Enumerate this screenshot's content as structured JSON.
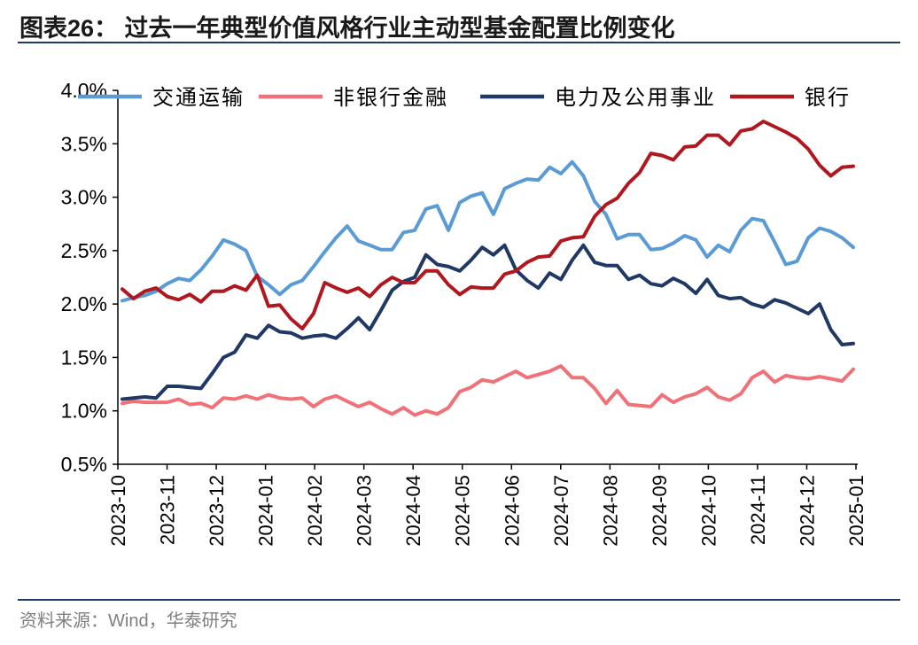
{
  "title": "图表26：  过去一年典型价值风格行业主动型基金配置比例变化",
  "source": "资料来源：Wind，华泰研究",
  "chart_data": {
    "type": "line",
    "ylim": [
      0.005,
      0.04
    ],
    "yticks": [
      "4.0%",
      "3.5%",
      "3.0%",
      "2.5%",
      "2.0%",
      "1.5%",
      "1.0%",
      "0.5%"
    ],
    "ytick_values": [
      0.04,
      0.035,
      0.03,
      0.025,
      0.02,
      0.015,
      0.01,
      0.005
    ],
    "xticks": [
      "2023-10",
      "2023-11",
      "2023-12",
      "2024-01",
      "2024-02",
      "2024-03",
      "2024-04",
      "2024-05",
      "2024-06",
      "2024-07",
      "2024-08",
      "2024-09",
      "2024-10",
      "2024-11",
      "2024-12",
      "2025-01"
    ],
    "legend_position": "top",
    "series": [
      {
        "name": "交通运输",
        "color": "#5b9bd5",
        "values": [
          0.0203,
          0.0206,
          0.0208,
          0.0212,
          0.0219,
          0.0224,
          0.0222,
          0.0232,
          0.0245,
          0.026,
          0.0256,
          0.025,
          0.0226,
          0.0218,
          0.0209,
          0.0218,
          0.0222,
          0.0235,
          0.0249,
          0.0262,
          0.0273,
          0.0259,
          0.0255,
          0.0251,
          0.0251,
          0.0267,
          0.0269,
          0.0289,
          0.0292,
          0.0269,
          0.0295,
          0.0301,
          0.0304,
          0.0284,
          0.0308,
          0.0313,
          0.0317,
          0.0316,
          0.0328,
          0.0322,
          0.0333,
          0.032,
          0.0296,
          0.0284,
          0.0261,
          0.0265,
          0.0265,
          0.0251,
          0.0252,
          0.0257,
          0.0264,
          0.026,
          0.0244,
          0.0255,
          0.0249,
          0.0269,
          0.028,
          0.0278,
          0.0258,
          0.0237,
          0.024,
          0.0262,
          0.0271,
          0.0268,
          0.0262,
          0.0253
        ]
      },
      {
        "name": "非银行金融",
        "color": "#f07178",
        "values": [
          0.0107,
          0.0109,
          0.0108,
          0.0108,
          0.0108,
          0.0111,
          0.0106,
          0.0107,
          0.0103,
          0.0112,
          0.0111,
          0.0114,
          0.0111,
          0.0115,
          0.0112,
          0.0111,
          0.0112,
          0.0104,
          0.0111,
          0.0114,
          0.0109,
          0.0104,
          0.0108,
          0.0102,
          0.0097,
          0.0103,
          0.0096,
          0.01,
          0.0097,
          0.0103,
          0.0118,
          0.0122,
          0.0129,
          0.0127,
          0.0132,
          0.0137,
          0.0131,
          0.0134,
          0.0137,
          0.0142,
          0.0131,
          0.0131,
          0.0121,
          0.0107,
          0.0119,
          0.0106,
          0.0105,
          0.0104,
          0.0115,
          0.0108,
          0.0113,
          0.0116,
          0.0122,
          0.0113,
          0.011,
          0.0116,
          0.0131,
          0.0137,
          0.0127,
          0.0133,
          0.0131,
          0.013,
          0.0132,
          0.013,
          0.0128,
          0.0139
        ]
      },
      {
        "name": "电力及公用事业",
        "color": "#1f3864",
        "values": [
          0.0111,
          0.0112,
          0.0113,
          0.0112,
          0.0123,
          0.0123,
          0.0122,
          0.0121,
          0.0135,
          0.015,
          0.0155,
          0.0171,
          0.0168,
          0.018,
          0.0174,
          0.0173,
          0.0168,
          0.017,
          0.0171,
          0.0168,
          0.0177,
          0.0187,
          0.0176,
          0.0194,
          0.0213,
          0.0221,
          0.0225,
          0.0246,
          0.0237,
          0.0235,
          0.0231,
          0.0241,
          0.0253,
          0.0246,
          0.0255,
          0.0232,
          0.0222,
          0.0215,
          0.0229,
          0.0223,
          0.0241,
          0.0255,
          0.0239,
          0.0236,
          0.0236,
          0.0223,
          0.0227,
          0.0219,
          0.0217,
          0.0224,
          0.0219,
          0.021,
          0.0223,
          0.0208,
          0.0205,
          0.0206,
          0.02,
          0.0197,
          0.0204,
          0.0201,
          0.0196,
          0.0191,
          0.02,
          0.0176,
          0.0162,
          0.0163
        ]
      },
      {
        "name": "银行",
        "color": "#b0171f",
        "values": [
          0.0214,
          0.0205,
          0.0212,
          0.0215,
          0.0207,
          0.0204,
          0.0209,
          0.0202,
          0.0212,
          0.0212,
          0.0217,
          0.0213,
          0.0227,
          0.0198,
          0.0199,
          0.0186,
          0.0177,
          0.0191,
          0.022,
          0.0215,
          0.0211,
          0.0215,
          0.0207,
          0.0218,
          0.0225,
          0.022,
          0.022,
          0.0231,
          0.0231,
          0.0218,
          0.0209,
          0.0216,
          0.0215,
          0.0215,
          0.0228,
          0.0231,
          0.0239,
          0.0244,
          0.0245,
          0.0259,
          0.0262,
          0.0263,
          0.0282,
          0.0293,
          0.0299,
          0.0313,
          0.0323,
          0.0341,
          0.0339,
          0.0335,
          0.0347,
          0.0348,
          0.0358,
          0.0358,
          0.0349,
          0.0362,
          0.0364,
          0.0371,
          0.0366,
          0.0361,
          0.0355,
          0.0345,
          0.033,
          0.032,
          0.0328,
          0.0329
        ]
      }
    ]
  }
}
